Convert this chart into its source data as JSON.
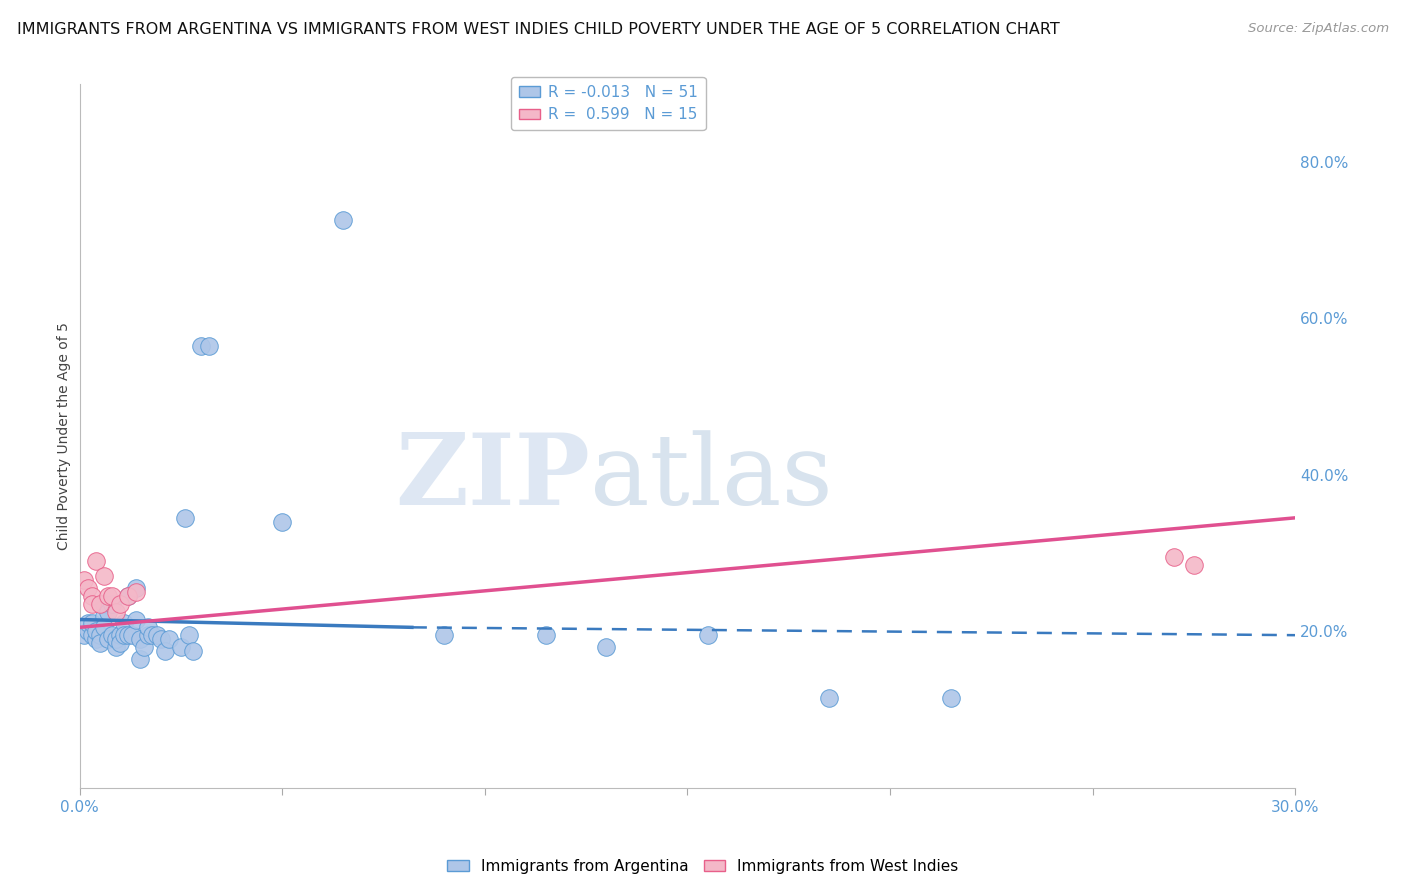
{
  "title": "IMMIGRANTS FROM ARGENTINA VS IMMIGRANTS FROM WEST INDIES CHILD POVERTY UNDER THE AGE OF 5 CORRELATION CHART",
  "source": "Source: ZipAtlas.com",
  "ylabel": "Child Poverty Under the Age of 5",
  "xlim": [
    0.0,
    0.3
  ],
  "ylim": [
    0.0,
    0.9
  ],
  "xticks": [
    0.0,
    0.05,
    0.1,
    0.15,
    0.2,
    0.25,
    0.3
  ],
  "xtick_labels": [
    "0.0%",
    "",
    "",
    "",
    "",
    "",
    "30.0%"
  ],
  "yticks_right": [
    0.2,
    0.4,
    0.6,
    0.8
  ],
  "ytick_labels_right": [
    "20.0%",
    "40.0%",
    "60.0%",
    "80.0%"
  ],
  "legend_entries": [
    {
      "label": "R = -0.013   N = 51",
      "color": "#aec6e8",
      "edge": "#5b9bd5"
    },
    {
      "label": "R =  0.599   N = 15",
      "color": "#f4b8c8",
      "edge": "#e8608a"
    }
  ],
  "argentina_points": [
    [
      0.001,
      0.195
    ],
    [
      0.002,
      0.2
    ],
    [
      0.002,
      0.21
    ],
    [
      0.003,
      0.195
    ],
    [
      0.003,
      0.21
    ],
    [
      0.004,
      0.19
    ],
    [
      0.004,
      0.2
    ],
    [
      0.005,
      0.195
    ],
    [
      0.005,
      0.185
    ],
    [
      0.006,
      0.22
    ],
    [
      0.006,
      0.235
    ],
    [
      0.006,
      0.205
    ],
    [
      0.007,
      0.225
    ],
    [
      0.007,
      0.19
    ],
    [
      0.008,
      0.195
    ],
    [
      0.008,
      0.235
    ],
    [
      0.009,
      0.18
    ],
    [
      0.009,
      0.19
    ],
    [
      0.01,
      0.195
    ],
    [
      0.01,
      0.185
    ],
    [
      0.011,
      0.21
    ],
    [
      0.011,
      0.195
    ],
    [
      0.012,
      0.245
    ],
    [
      0.012,
      0.195
    ],
    [
      0.013,
      0.195
    ],
    [
      0.014,
      0.255
    ],
    [
      0.014,
      0.215
    ],
    [
      0.015,
      0.19
    ],
    [
      0.015,
      0.165
    ],
    [
      0.016,
      0.18
    ],
    [
      0.017,
      0.195
    ],
    [
      0.017,
      0.205
    ],
    [
      0.018,
      0.195
    ],
    [
      0.019,
      0.195
    ],
    [
      0.02,
      0.19
    ],
    [
      0.021,
      0.175
    ],
    [
      0.022,
      0.19
    ],
    [
      0.025,
      0.18
    ],
    [
      0.026,
      0.345
    ],
    [
      0.027,
      0.195
    ],
    [
      0.028,
      0.175
    ],
    [
      0.03,
      0.565
    ],
    [
      0.032,
      0.565
    ],
    [
      0.05,
      0.34
    ],
    [
      0.065,
      0.725
    ],
    [
      0.09,
      0.195
    ],
    [
      0.115,
      0.195
    ],
    [
      0.13,
      0.18
    ],
    [
      0.155,
      0.195
    ],
    [
      0.185,
      0.115
    ],
    [
      0.215,
      0.115
    ]
  ],
  "west_indies_points": [
    [
      0.001,
      0.265
    ],
    [
      0.002,
      0.255
    ],
    [
      0.003,
      0.245
    ],
    [
      0.003,
      0.235
    ],
    [
      0.004,
      0.29
    ],
    [
      0.005,
      0.235
    ],
    [
      0.006,
      0.27
    ],
    [
      0.007,
      0.245
    ],
    [
      0.008,
      0.245
    ],
    [
      0.009,
      0.225
    ],
    [
      0.01,
      0.235
    ],
    [
      0.012,
      0.245
    ],
    [
      0.014,
      0.25
    ],
    [
      0.27,
      0.295
    ],
    [
      0.275,
      0.285
    ]
  ],
  "argentina_line_solid": {
    "x0": 0.0,
    "y0": 0.215,
    "x1": 0.082,
    "y1": 0.205
  },
  "argentina_line_dashed": {
    "x0": 0.082,
    "y0": 0.205,
    "x1": 0.3,
    "y1": 0.195
  },
  "west_indies_line": {
    "x0": 0.0,
    "y0": 0.205,
    "x1": 0.3,
    "y1": 0.345
  },
  "argentina_color": "#aec6e8",
  "west_indies_color": "#f4b8c8",
  "argentina_edge_color": "#5b9bd5",
  "west_indies_edge_color": "#e8608a",
  "argentina_line_color": "#3a7abf",
  "west_indies_line_color": "#e05090",
  "background_color": "#ffffff",
  "watermark_zip": "ZIP",
  "watermark_atlas": "atlas",
  "axis_color": "#5b9bd5",
  "grid_color": "#cccccc",
  "title_fontsize": 11.5,
  "axis_label_fontsize": 10,
  "tick_fontsize": 11,
  "source_fontsize": 9.5
}
